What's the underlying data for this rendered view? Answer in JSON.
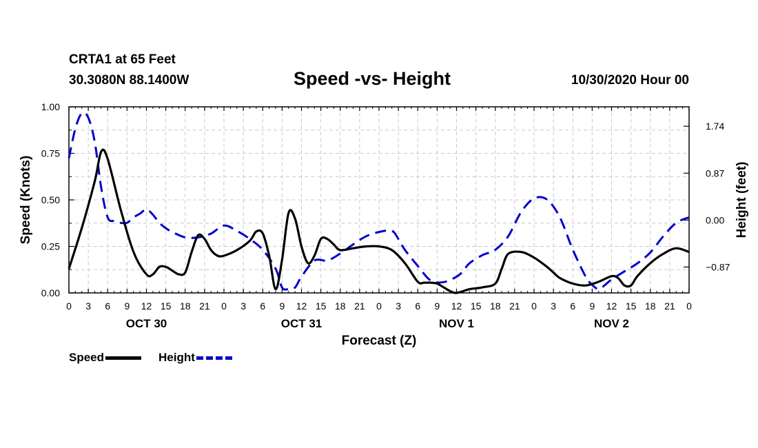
{
  "header": {
    "station": "CRTA1 at 65 Feet",
    "coords": "30.3080N 88.1400W",
    "title": "Speed -vs- Height",
    "datetime": "10/30/2020 Hour 00"
  },
  "legend": {
    "speed": "Speed",
    "height": "Height"
  },
  "chart_data": {
    "type": "line",
    "xlabel": "Forecast (Z)",
    "ylabel_left": "Speed (Knots)",
    "ylabel_right": "Height (feet)",
    "xlim": [
      0,
      96
    ],
    "ylim_left": [
      0,
      1
    ],
    "ylim_right": [
      -1.35,
      2.1
    ],
    "x_tick_labels": [
      "0",
      "3",
      "6",
      "9",
      "12",
      "15",
      "18",
      "21",
      "0",
      "3",
      "6",
      "9",
      "12",
      "15",
      "18",
      "21",
      "0",
      "3",
      "6",
      "9",
      "12",
      "15",
      "18",
      "21",
      "0",
      "3",
      "6",
      "9",
      "12",
      "15",
      "18",
      "21",
      "0"
    ],
    "y_left_ticks": [
      0,
      0.25,
      0.5,
      0.75,
      1.0
    ],
    "y_left_tick_labels": [
      "0.00",
      "0.25",
      "0.50",
      "0.75",
      "1.00"
    ],
    "y_right_ticks": [
      -0.87,
      0,
      0.87,
      1.74
    ],
    "y_right_tick_labels": [
      "−0.87",
      "0.00",
      "0.87",
      "1.74"
    ],
    "day_labels": [
      {
        "hour": 12,
        "label": "OCT 30"
      },
      {
        "hour": 36,
        "label": "OCT 31"
      },
      {
        "hour": 60,
        "label": "NOV 1"
      },
      {
        "hour": 84,
        "label": "NOV 2"
      }
    ],
    "grid": true,
    "series": [
      {
        "name": "Speed",
        "axis": "left",
        "color": "#000000",
        "style": "solid",
        "x": [
          0,
          2,
          4,
          5,
          6,
          8,
          10,
          12,
          13,
          14,
          15,
          16,
          17,
          18,
          19,
          20,
          21,
          22,
          23,
          24,
          26,
          28,
          29,
          30,
          31,
          32,
          33,
          34,
          35,
          36,
          37,
          38,
          39,
          40,
          41,
          42,
          44,
          46,
          48,
          50,
          52,
          54,
          55,
          56,
          57,
          58,
          59,
          60,
          62,
          64,
          66,
          67,
          68,
          70,
          72,
          74,
          75,
          76,
          78,
          80,
          82,
          84,
          85,
          86,
          87,
          88,
          90,
          92,
          94,
          96
        ],
        "y": [
          0.13,
          0.35,
          0.6,
          0.76,
          0.72,
          0.45,
          0.22,
          0.1,
          0.1,
          0.14,
          0.14,
          0.12,
          0.1,
          0.11,
          0.22,
          0.31,
          0.29,
          0.23,
          0.2,
          0.2,
          0.23,
          0.28,
          0.33,
          0.32,
          0.2,
          0.02,
          0.18,
          0.43,
          0.4,
          0.25,
          0.16,
          0.2,
          0.29,
          0.29,
          0.26,
          0.23,
          0.24,
          0.25,
          0.25,
          0.23,
          0.16,
          0.06,
          0.055,
          0.055,
          0.05,
          0.03,
          0.01,
          0.0,
          0.02,
          0.03,
          0.05,
          0.13,
          0.21,
          0.22,
          0.19,
          0.14,
          0.11,
          0.08,
          0.05,
          0.04,
          0.06,
          0.09,
          0.08,
          0.04,
          0.04,
          0.09,
          0.16,
          0.21,
          0.24,
          0.22
        ]
      },
      {
        "name": "Height",
        "axis": "right",
        "color": "#0000cc",
        "style": "dashed",
        "x": [
          0,
          1,
          2,
          3,
          4,
          5,
          6,
          7,
          8,
          9,
          10,
          11,
          12,
          13,
          14,
          15,
          16,
          18,
          20,
          22,
          24,
          26,
          28,
          30,
          32,
          33,
          34,
          35,
          36,
          38,
          40,
          42,
          44,
          46,
          48,
          50,
          51,
          52,
          54,
          56,
          58,
          60,
          61,
          62,
          64,
          66,
          68,
          70,
          72,
          74,
          76,
          78,
          80,
          81,
          82,
          83,
          84,
          86,
          88,
          90,
          92,
          94,
          96
        ],
        "y": [
          1.15,
          1.7,
          1.98,
          1.9,
          1.45,
          0.6,
          0.05,
          -0.02,
          -0.05,
          -0.05,
          0.05,
          0.12,
          0.2,
          0.1,
          -0.05,
          -0.15,
          -0.22,
          -0.32,
          -0.32,
          -0.25,
          -0.1,
          -0.2,
          -0.35,
          -0.55,
          -0.9,
          -1.25,
          -1.28,
          -1.25,
          -1.05,
          -0.75,
          -0.75,
          -0.62,
          -0.45,
          -0.3,
          -0.22,
          -0.2,
          -0.35,
          -0.55,
          -0.85,
          -1.12,
          -1.15,
          -1.05,
          -0.95,
          -0.8,
          -0.65,
          -0.55,
          -0.3,
          0.15,
          0.4,
          0.38,
          0.05,
          -0.55,
          -1.05,
          -1.2,
          -1.28,
          -1.2,
          -1.1,
          -0.95,
          -0.8,
          -0.6,
          -0.3,
          -0.05,
          0.05
        ]
      }
    ]
  }
}
